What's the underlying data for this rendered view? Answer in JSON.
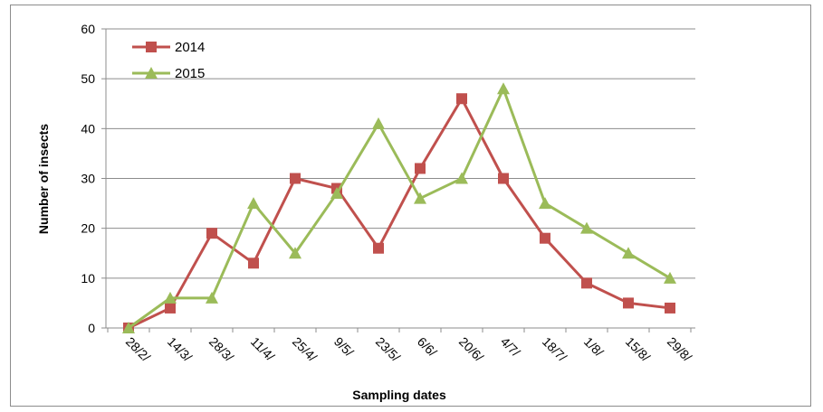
{
  "chart_data": {
    "type": "line",
    "title": "",
    "xlabel": "Sampling dates",
    "ylabel": "Number of insects",
    "ylim": [
      0,
      60
    ],
    "yticks": [
      0,
      10,
      20,
      30,
      40,
      50,
      60
    ],
    "grid": true,
    "legend_position": "top-left",
    "categories": [
      "28/2/",
      "14/3/",
      "28/3/",
      "11/4/",
      "25/4/",
      "9/5/",
      "23/5/",
      "6/6/",
      "20/6/",
      "4/7/",
      "18/7/",
      "1/8/",
      "15/8/",
      "29/8/"
    ],
    "series": [
      {
        "name": "2014",
        "color": "#c0504d",
        "marker": "square",
        "values": [
          0,
          4,
          19,
          13,
          30,
          28,
          16,
          32,
          46,
          30,
          18,
          9,
          5,
          4
        ]
      },
      {
        "name": "2015",
        "color": "#9bbb59",
        "marker": "triangle",
        "values": [
          0,
          6,
          6,
          25,
          15,
          27,
          41,
          26,
          30,
          48,
          25,
          20,
          15,
          10
        ]
      }
    ]
  }
}
